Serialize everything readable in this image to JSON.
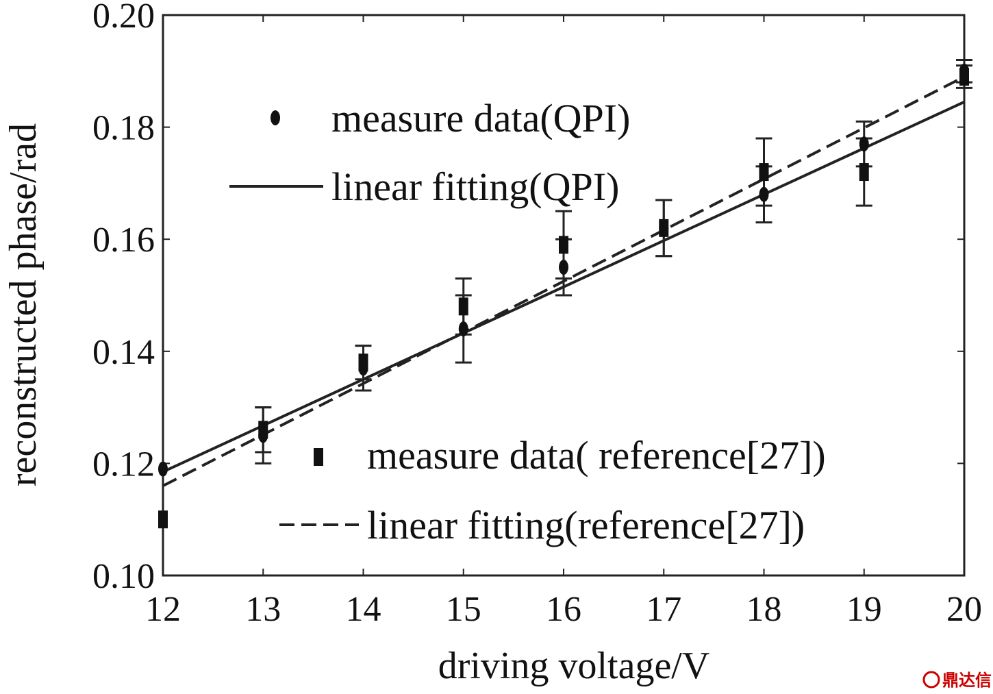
{
  "chart_data": {
    "type": "scatter",
    "xlabel": "driving voltage/V",
    "ylabel": "reconstructed phase/rad",
    "xlim": [
      12,
      20
    ],
    "ylim": [
      0.1,
      0.2
    ],
    "x_ticks": [
      "12",
      "13",
      "14",
      "15",
      "16",
      "17",
      "18",
      "19",
      "20"
    ],
    "y_ticks": [
      "0.10",
      "0.12",
      "0.14",
      "0.16",
      "0.18",
      "0.20"
    ],
    "grid": false,
    "series": [
      {
        "name": "measure data(QPI)",
        "kind": "points",
        "marker": "circle",
        "x": [
          12,
          13,
          14,
          15,
          16,
          17,
          18,
          19,
          20
        ],
        "y": [
          0.119,
          0.125,
          0.137,
          0.144,
          0.155,
          0.162,
          0.168,
          0.177,
          0.19
        ],
        "err": [
          0.0,
          0.005,
          0.004,
          0.006,
          0.005,
          0.005,
          0.005,
          0.004,
          0.002
        ]
      },
      {
        "name": "linear fitting(QPI)",
        "kind": "line",
        "dash": "solid",
        "x": [
          12,
          20
        ],
        "y": [
          0.1185,
          0.1845
        ]
      },
      {
        "name": "measure data( reference[27])",
        "kind": "points",
        "marker": "square",
        "x": [
          12,
          13,
          14,
          15,
          16,
          17,
          18,
          19,
          20
        ],
        "y": [
          0.11,
          0.126,
          0.138,
          0.148,
          0.159,
          0.162,
          0.172,
          0.172,
          0.189
        ],
        "err": [
          0.0,
          0.004,
          0.003,
          0.005,
          0.006,
          0.005,
          0.006,
          0.006,
          0.002
        ]
      },
      {
        "name": "linear fitting(reference[27])",
        "kind": "line",
        "dash": "dashed",
        "x": [
          12,
          20
        ],
        "y": [
          0.116,
          0.189
        ]
      }
    ],
    "legend": "two groups: upper-left and lower-right"
  },
  "watermark": {
    "text": "鼎达信",
    "color": "#cc0000"
  }
}
